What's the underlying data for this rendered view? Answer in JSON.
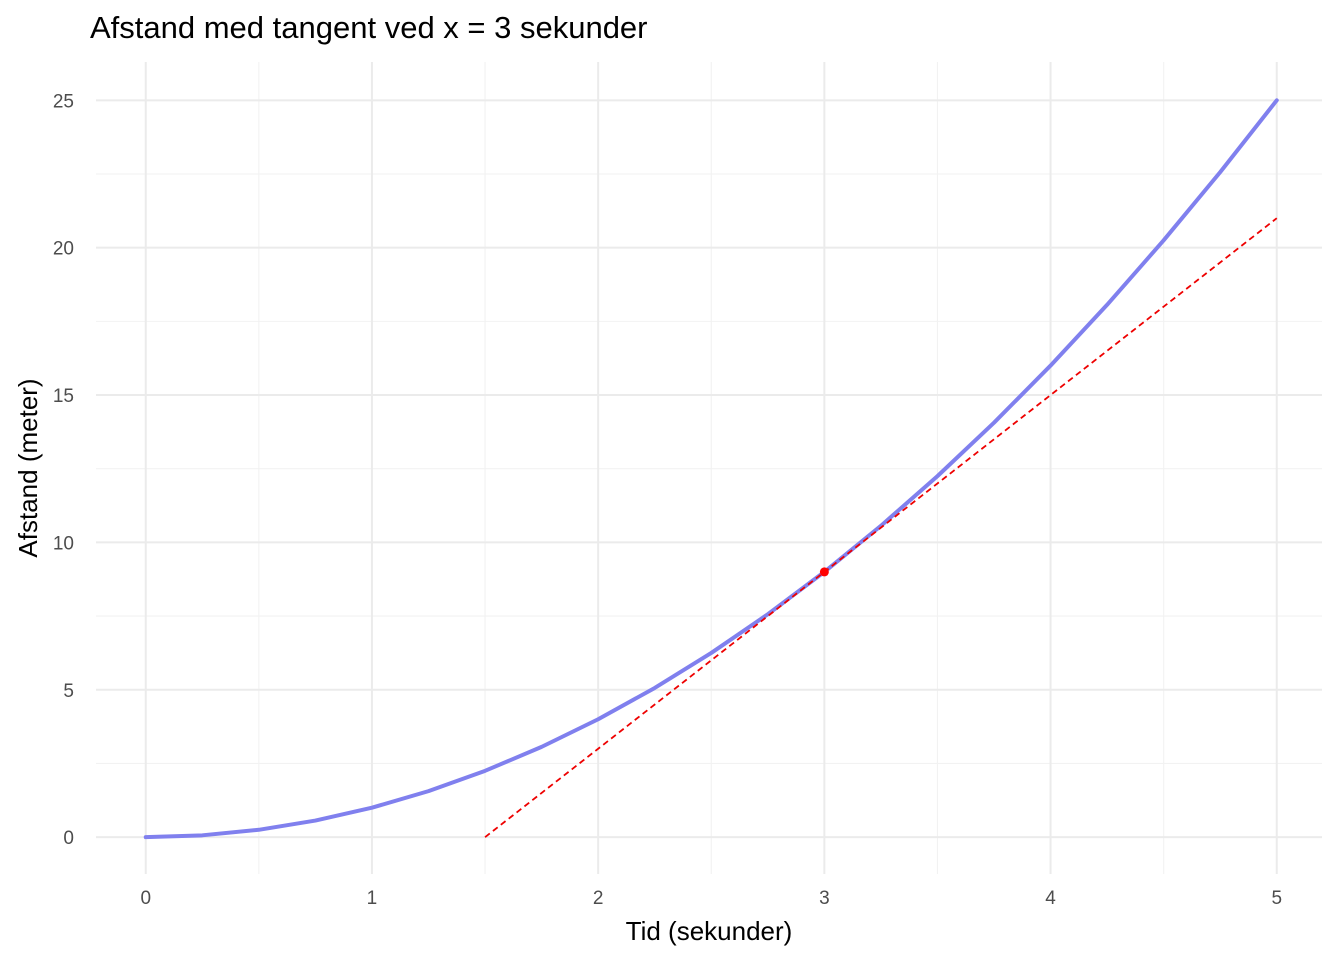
{
  "chart_data": {
    "type": "line",
    "title": "Afstand med tangent ved x = 3 sekunder",
    "xlabel": "Tid (sekunder)",
    "ylabel": "Afstand (meter)",
    "xlim": [
      -0.22,
      5.2
    ],
    "ylim": [
      -1.25,
      26.3
    ],
    "x_ticks": [
      0,
      1,
      2,
      3,
      4,
      5
    ],
    "y_ticks": [
      0,
      5,
      10,
      15,
      20,
      25
    ],
    "x_minor": [
      0.5,
      1.5,
      2.5,
      3.5,
      4.5
    ],
    "y_minor": [
      2.5,
      7.5,
      12.5,
      17.5,
      22.5
    ],
    "grid": true,
    "series": [
      {
        "style": "solid",
        "color": "#8080ee",
        "x": [
          0,
          0.25,
          0.5,
          0.75,
          1,
          1.25,
          1.5,
          1.75,
          2,
          2.25,
          2.5,
          2.75,
          3,
          3.25,
          3.5,
          3.75,
          4,
          4.25,
          4.5,
          4.75,
          5
        ],
        "y": [
          0,
          0.0625,
          0.25,
          0.5625,
          1,
          1.5625,
          2.25,
          3.0625,
          4,
          5.0625,
          6.25,
          7.5625,
          9,
          10.5625,
          12.25,
          14.0625,
          16,
          18.0625,
          20.25,
          22.5625,
          25
        ]
      },
      {
        "style": "dashed",
        "color": "#ee0000",
        "x": [
          1.5,
          5
        ],
        "y": [
          0,
          21
        ]
      }
    ],
    "points": [
      {
        "x": 3,
        "y": 9,
        "color": "#ff0000"
      }
    ]
  }
}
